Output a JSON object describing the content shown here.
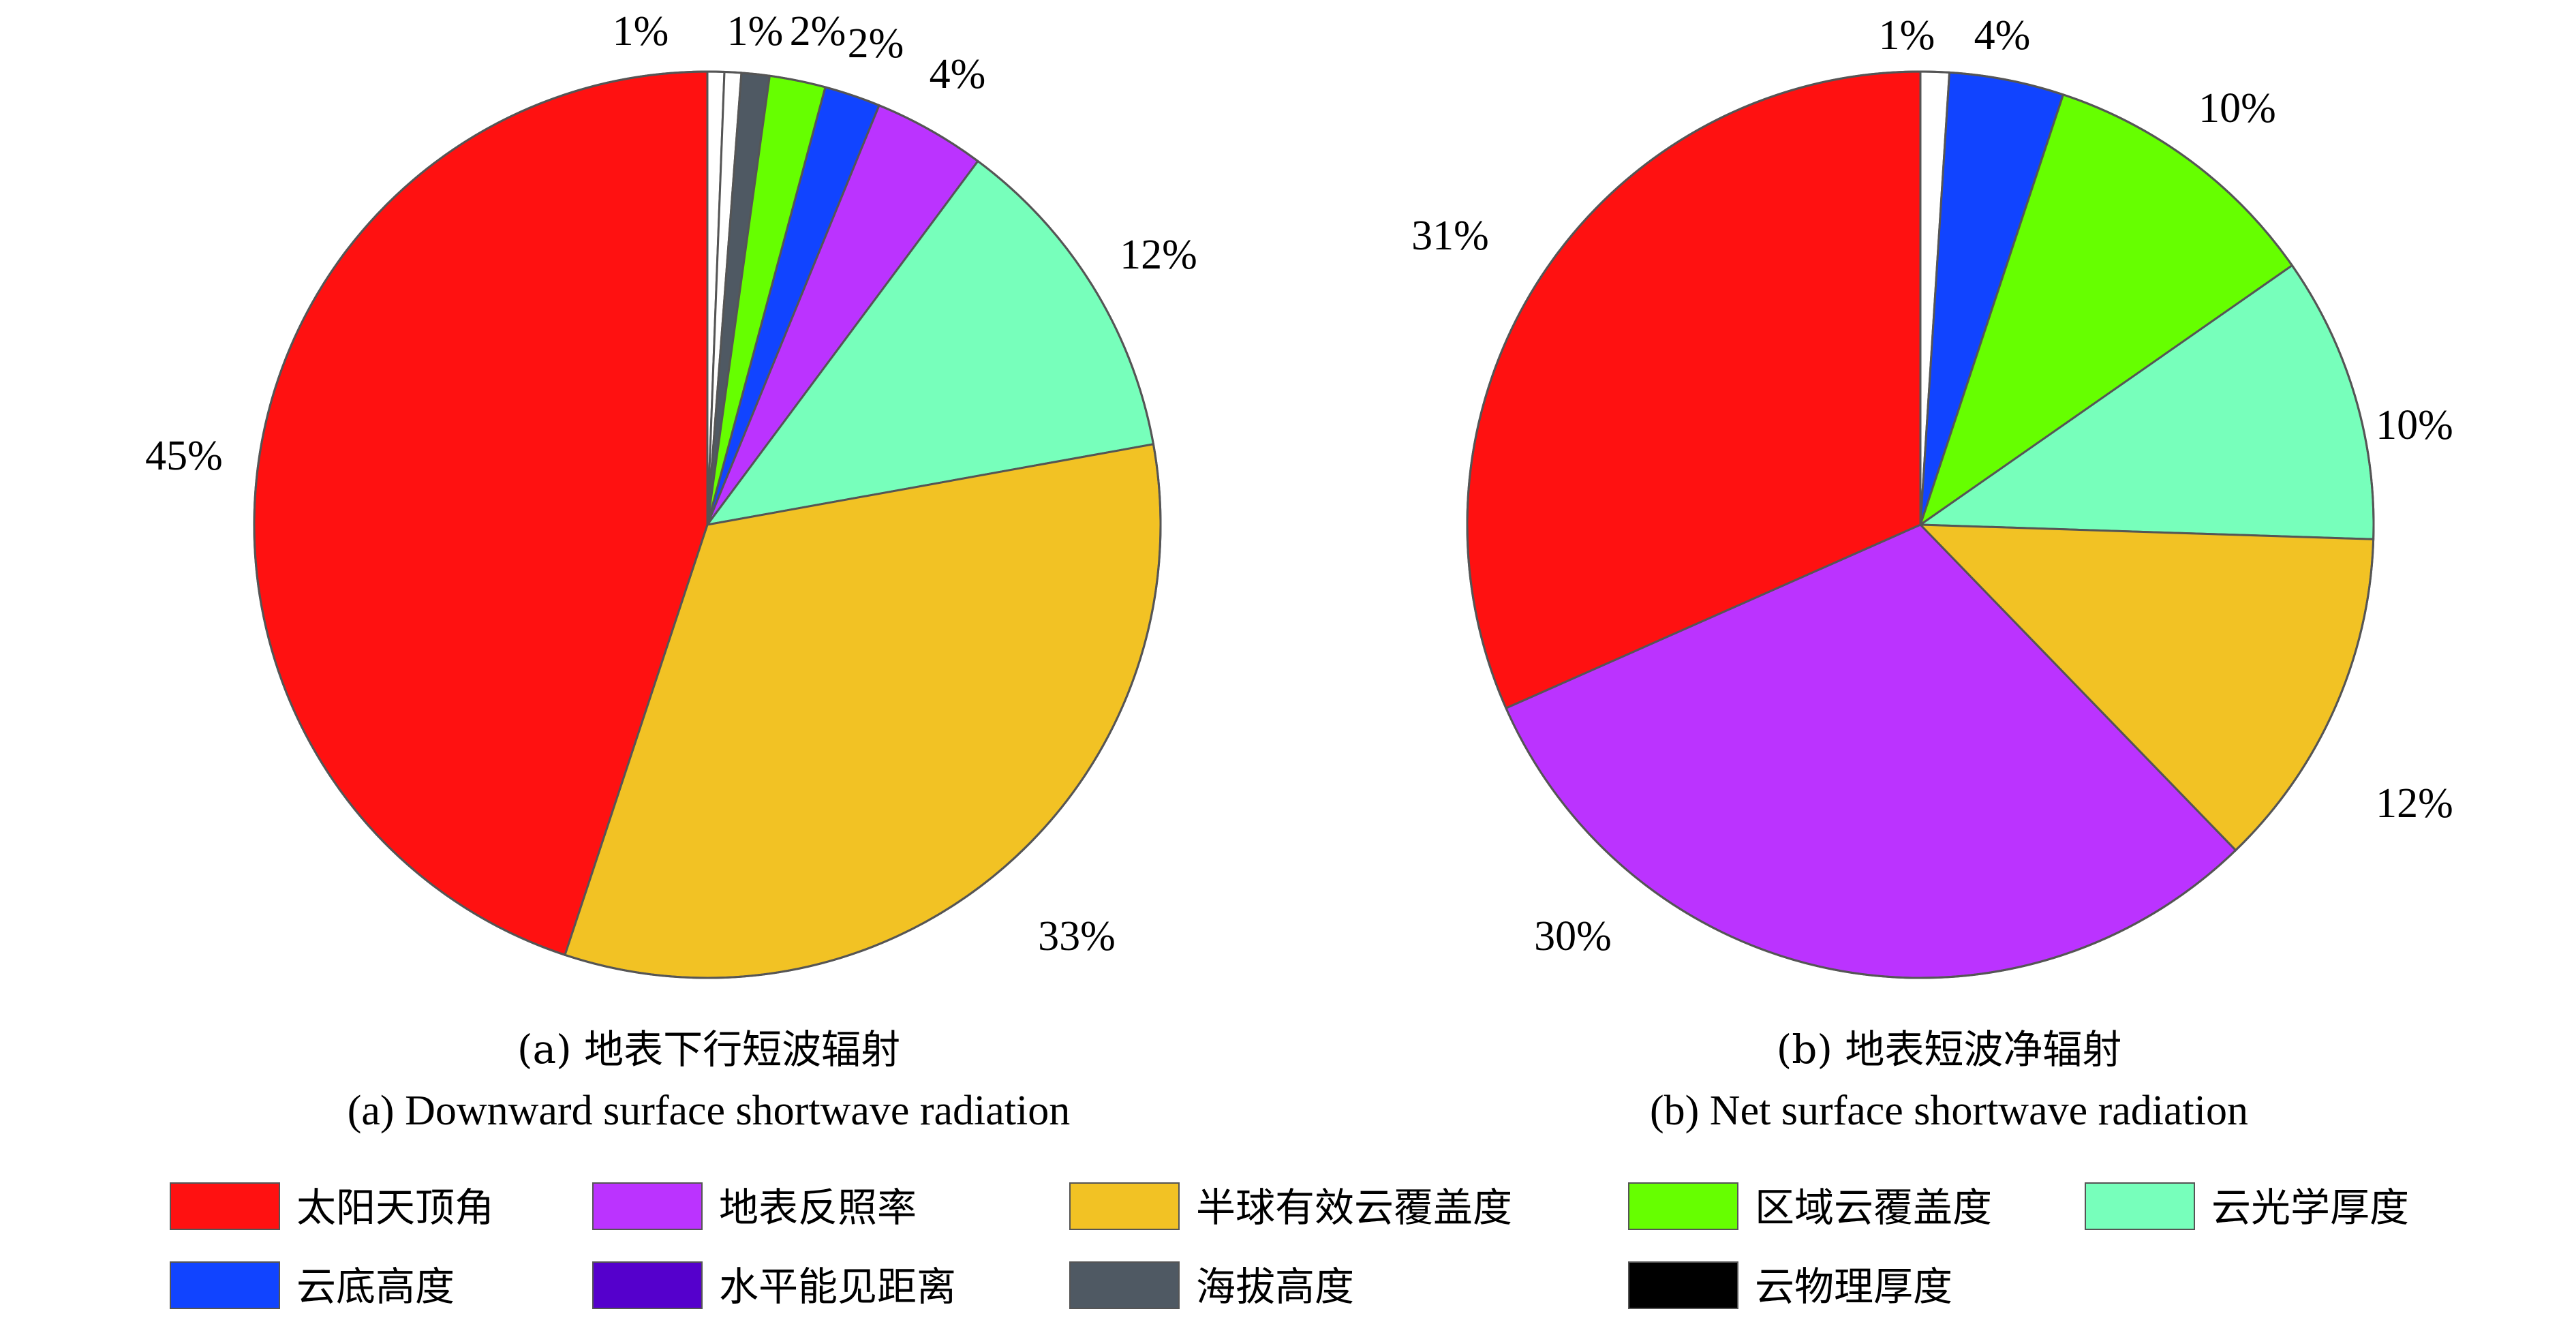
{
  "chart_data": [
    {
      "type": "pie",
      "caption_zh": "(a) 地表下行短波辐射",
      "caption_en": "(a) Downward surface shortwave radiation",
      "slices": [
        {
          "category": "云物理厚度",
          "value": 0.6,
          "label": "",
          "color": "#ffffff"
        },
        {
          "category": "水平能见距离",
          "value": 0.6,
          "label": "1%",
          "color": "#ffffff"
        },
        {
          "category": "海拔高度",
          "value": 1.0,
          "label": "1%",
          "color": "#4f5963"
        },
        {
          "category": "区域云覆盖度",
          "value": 2,
          "label": "2%",
          "color": "#66ff00"
        },
        {
          "category": "云底高度",
          "value": 2,
          "label": "2%",
          "color": "#1144ff"
        },
        {
          "category": "地表反照率",
          "value": 4,
          "label": "4%",
          "color": "#bb33ff"
        },
        {
          "category": "云光学厚度",
          "value": 12,
          "label": "12%",
          "color": "#77ffbb"
        },
        {
          "category": "半球有效云覆盖度",
          "value": 33,
          "label": "33%",
          "color": "#f2c224"
        },
        {
          "category": "太阳天顶角",
          "value": 45,
          "label": "45%",
          "color": "#ff1111"
        }
      ]
    },
    {
      "type": "pie",
      "caption_zh": "(b) 地表短波净辐射",
      "caption_en": "(b) Net surface shortwave radiation",
      "slices": [
        {
          "category": "海拔高度",
          "value": 1,
          "label": "1%",
          "color": "#ffffff"
        },
        {
          "category": "云底高度",
          "value": 4,
          "label": "4%",
          "color": "#1144ff"
        },
        {
          "category": "区域云覆盖度",
          "value": 10,
          "label": "10%",
          "color": "#66ff00"
        },
        {
          "category": "云光学厚度",
          "value": 10,
          "label": "10%",
          "color": "#77ffbb"
        },
        {
          "category": "半球有效云覆盖度",
          "value": 12,
          "label": "12%",
          "color": "#f2c224"
        },
        {
          "category": "地表反照率",
          "value": 30,
          "label": "30%",
          "color": "#bb33ff"
        },
        {
          "category": "太阳天顶角",
          "value": 31,
          "label": "31%",
          "color": "#ff1111"
        }
      ]
    }
  ],
  "legend": [
    {
      "label": "太阳天顶角",
      "color": "#ff1111"
    },
    {
      "label": "地表反照率",
      "color": "#bb33ff"
    },
    {
      "label": "半球有效云覆盖度",
      "color": "#f2c224"
    },
    {
      "label": "区域云覆盖度",
      "color": "#66ff00"
    },
    {
      "label": "云光学厚度",
      "color": "#77ffbb"
    },
    {
      "label": "云底高度",
      "color": "#1144ff"
    },
    {
      "label": "水平能见距离",
      "color": "#5500cc"
    },
    {
      "label": "海拔高度",
      "color": "#4f5963"
    },
    {
      "label": "云物理厚度",
      "color": "#000000"
    }
  ]
}
